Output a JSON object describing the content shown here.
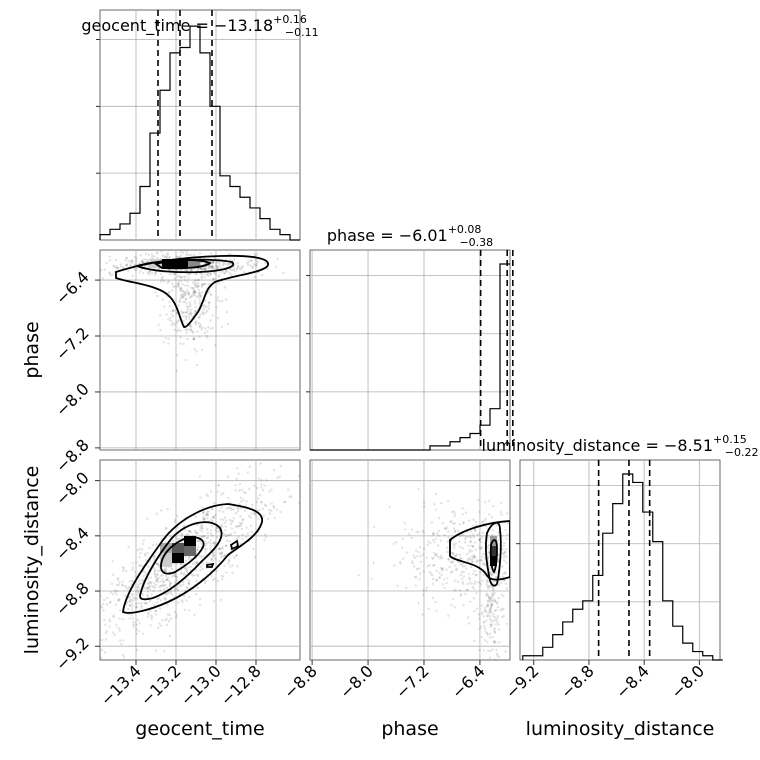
{
  "chart_data": {
    "type": "corner",
    "parameters": [
      "geocent_time",
      "phase",
      "luminosity_distance"
    ],
    "axis_labels": [
      "geocent_time",
      "phase",
      "luminosity_distance"
    ],
    "ranges": {
      "geocent_time": [
        -13.58,
        -12.58
      ],
      "phase": [
        -8.83,
        -5.97
      ],
      "luminosity_distance": [
        -9.3,
        -7.85
      ]
    },
    "ticks": {
      "geocent_time": [
        "−13.4",
        "−13.2",
        "−13.0",
        "−12.8"
      ],
      "phase": [
        "−8.8",
        "−8.0",
        "−7.2",
        "−6.4"
      ],
      "luminosity_distance": [
        "−9.2",
        "−8.8",
        "−8.4",
        "−8.0"
      ]
    },
    "tick_values": {
      "geocent_time": [
        -13.4,
        -13.2,
        -13.0,
        -12.8
      ],
      "phase": [
        -8.8,
        -8.0,
        -7.2,
        -6.4
      ],
      "luminosity_distance": [
        -9.2,
        -8.8,
        -8.4,
        -8.0
      ]
    },
    "titles": [
      {
        "name": "geocent_time = ",
        "median": "−13.18",
        "plus": "+0.16",
        "minus": "−0.11"
      },
      {
        "name": "phase = ",
        "median": "−6.01",
        "plus": "+0.08",
        "minus": "−0.38"
      },
      {
        "name": "luminosity_distance = ",
        "median": "−8.51",
        "plus": "+0.15",
        "minus": "−0.22"
      }
    ],
    "quantiles": {
      "geocent_time": [
        -13.29,
        -13.18,
        -13.02
      ],
      "phase": [
        -6.39,
        -6.01,
        -5.93
      ],
      "luminosity_distance": [
        -8.73,
        -8.51,
        -8.36
      ]
    },
    "histograms": {
      "geocent_time": {
        "edges_start": -13.58,
        "bin_width": 0.05,
        "counts": [
          1,
          2,
          3,
          5,
          10,
          20,
          28,
          35,
          36,
          40,
          35,
          25,
          12,
          10,
          8,
          6,
          4,
          2,
          1,
          0
        ]
      },
      "phase": {
        "edges_start": -8.83,
        "bin_width": 0.143,
        "counts": [
          0,
          0,
          0,
          0,
          0,
          0,
          0,
          0,
          0,
          0,
          0,
          0,
          1,
          1,
          2,
          3,
          4,
          6,
          10,
          45
        ]
      },
      "luminosity_distance": {
        "edges_start": -9.28,
        "bin_width": 0.0725,
        "counts": [
          1,
          1,
          3,
          6,
          9,
          12,
          14,
          20,
          30,
          37,
          44,
          42,
          35,
          28,
          14,
          8,
          4,
          2,
          1,
          0
        ]
      }
    },
    "grid": true
  }
}
